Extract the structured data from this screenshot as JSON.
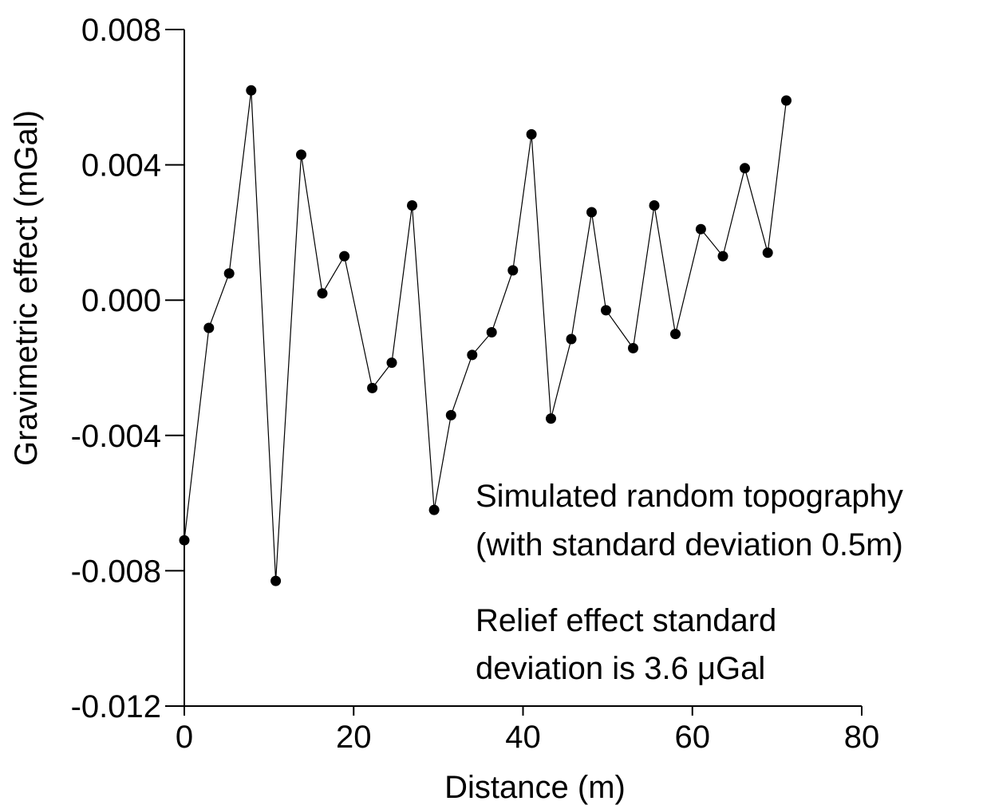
{
  "chart_data": {
    "type": "line",
    "xlabel": "Distance (m)",
    "ylabel": "Gravimetric effect (mGal)",
    "xlim": [
      0,
      80
    ],
    "ylim": [
      -0.012,
      0.008
    ],
    "xticks": [
      {
        "value": 0,
        "label": "0"
      },
      {
        "value": 20,
        "label": "20"
      },
      {
        "value": 40,
        "label": "40"
      },
      {
        "value": 60,
        "label": "60"
      },
      {
        "value": 80,
        "label": "80"
      }
    ],
    "yticks": [
      {
        "value": 0.008,
        "label": "0.008"
      },
      {
        "value": 0.004,
        "label": "0.004"
      },
      {
        "value": 0.0,
        "label": "0.000"
      },
      {
        "value": -0.004,
        "label": "-0.004"
      },
      {
        "value": -0.008,
        "label": "-0.008"
      },
      {
        "value": -0.012,
        "label": "-0.012"
      }
    ],
    "grid": false,
    "marker": "filled-circle",
    "series": [
      {
        "x": [
          0,
          2.9,
          5.3,
          7.9,
          10.8,
          13.8,
          16.3,
          18.9,
          22.2,
          24.5,
          26.9,
          29.5,
          31.5,
          34.0,
          36.3,
          38.8,
          41.0,
          43.3,
          45.7,
          48.1,
          49.8,
          53.0,
          55.5,
          58.0,
          61.0,
          63.6,
          66.2,
          68.9,
          71.1
        ],
        "y": [
          -0.0071,
          -0.00082,
          0.00079,
          0.0062,
          -0.0083,
          0.0043,
          0.0002,
          0.0013,
          -0.0026,
          -0.00185,
          0.0028,
          -0.0062,
          -0.0034,
          -0.00162,
          -0.00095,
          0.00088,
          0.0049,
          -0.0035,
          -0.00115,
          0.0026,
          -0.0003,
          -0.00142,
          0.0028,
          -0.001,
          0.0021,
          0.0013,
          0.0039,
          0.0014,
          0.0059
        ]
      }
    ],
    "annotations": [
      {
        "lines": [
          "Simulated random topography",
          "(with standard deviation 0.5m)"
        ]
      },
      {
        "lines": [
          "Relief effect standard",
          "deviation  is 3.6 μGal"
        ]
      }
    ]
  }
}
